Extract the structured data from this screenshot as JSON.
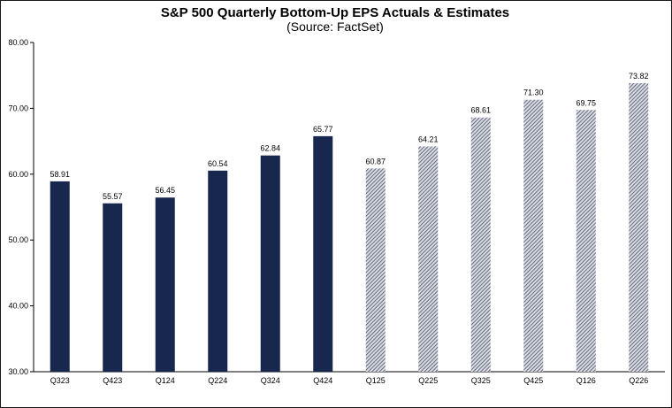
{
  "chart_data": {
    "type": "bar",
    "title": "S&P 500 Quarterly Bottom-Up EPS Actuals & Estimates",
    "subtitle": "(Source: FactSet)",
    "xlabel": "",
    "ylabel": "",
    "ylim": [
      30,
      80
    ],
    "yticks": [
      "30.00",
      "40.00",
      "50.00",
      "60.00",
      "70.00",
      "80.00"
    ],
    "grid": false,
    "categories": [
      "Q323",
      "Q423",
      "Q124",
      "Q224",
      "Q324",
      "Q424",
      "Q125",
      "Q225",
      "Q325",
      "Q425",
      "Q126",
      "Q226"
    ],
    "value_labels": [
      "58.91",
      "55.57",
      "56.45",
      "60.54",
      "62.84",
      "65.77",
      "60.87",
      "64.21",
      "68.61",
      "71.30",
      "69.75",
      "73.82"
    ],
    "series": [
      {
        "name": "Actuals",
        "values": [
          58.91,
          55.57,
          56.45,
          60.54,
          62.84,
          65.77,
          null,
          null,
          null,
          null,
          null,
          null
        ],
        "color": "#17274d"
      },
      {
        "name": "Estimates",
        "values": [
          null,
          null,
          null,
          null,
          null,
          null,
          60.87,
          64.21,
          68.61,
          71.3,
          69.75,
          73.82
        ],
        "color": "#6b6f7d"
      }
    ]
  }
}
